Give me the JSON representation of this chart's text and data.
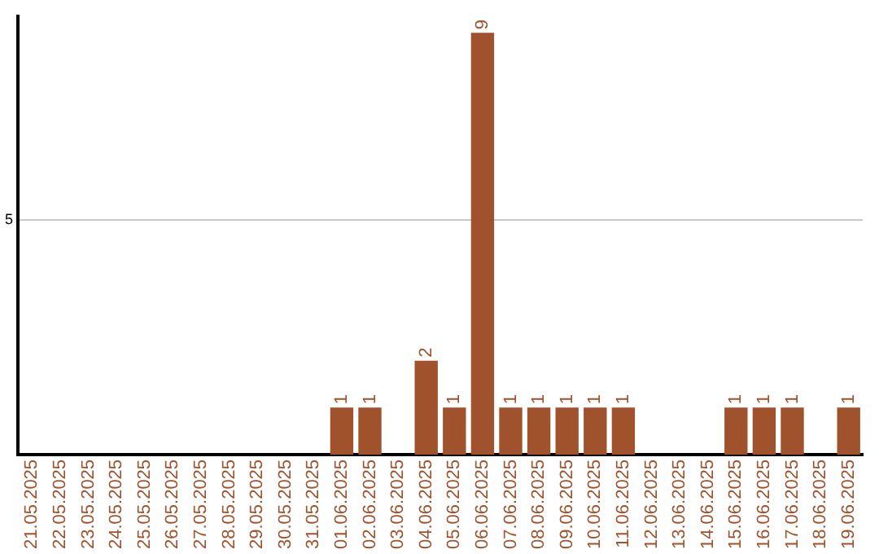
{
  "chart_data": {
    "type": "bar",
    "categories": [
      "21.05.2025",
      "22.05.2025",
      "23.05.2025",
      "24.05.2025",
      "25.05.2025",
      "26.05.2025",
      "27.05.2025",
      "28.05.2025",
      "29.05.2025",
      "30.05.2025",
      "31.05.2025",
      "01.06.2025",
      "02.06.2025",
      "03.06.2025",
      "04.06.2025",
      "05.06.2025",
      "06.06.2025",
      "07.06.2025",
      "08.06.2025",
      "09.06.2025",
      "10.06.2025",
      "11.06.2025",
      "12.06.2025",
      "13.06.2025",
      "14.06.2025",
      "15.06.2025",
      "16.06.2025",
      "17.06.2025",
      "18.06.2025",
      "19.06.2025"
    ],
    "values": [
      0,
      0,
      0,
      0,
      0,
      0,
      0,
      0,
      0,
      0,
      0,
      1,
      1,
      0,
      2,
      1,
      9,
      1,
      1,
      1,
      1,
      1,
      0,
      0,
      0,
      1,
      1,
      1,
      0,
      1
    ],
    "value_labels": [
      null,
      null,
      null,
      null,
      null,
      null,
      null,
      null,
      null,
      null,
      null,
      "1",
      "1",
      null,
      "2",
      "1",
      "9",
      "1",
      "1",
      "1",
      "1",
      "1",
      null,
      null,
      null,
      "1",
      "1",
      "1",
      null,
      "1"
    ],
    "color": "#a0522d",
    "ylim": [
      0,
      9.35
    ],
    "yticks": [
      5
    ],
    "grid": "y",
    "legend": false
  }
}
